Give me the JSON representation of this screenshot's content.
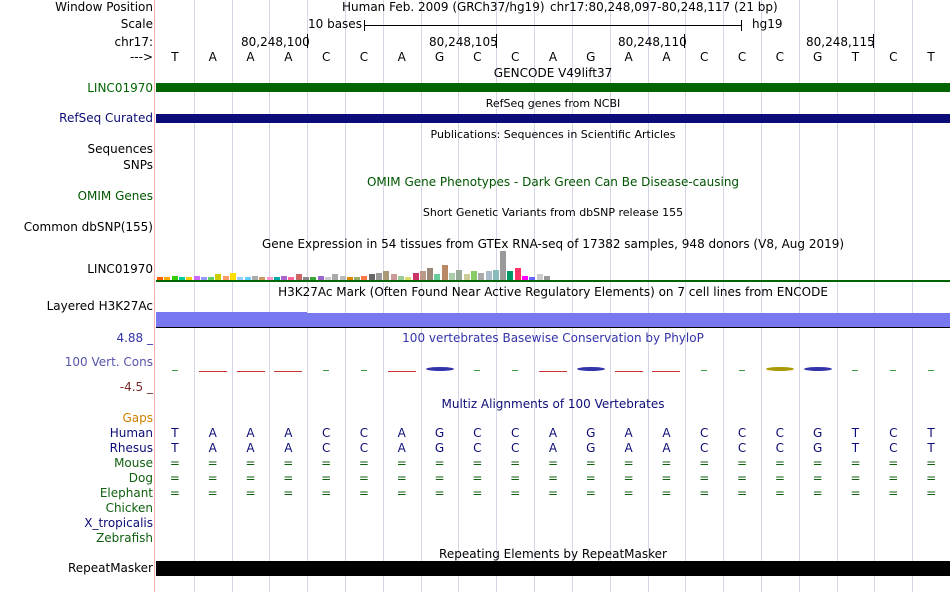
{
  "colors": {
    "gencode": "#006400",
    "refseq": "#0c0c78",
    "omim": "#005500",
    "h3k27ac": "#7878f0",
    "phylop": "#3333aa",
    "phylop_label": "#5555aa",
    "repeat": "#000000",
    "gaps": "#d08000",
    "mammal": "#0c0c78",
    "vertebrate": "#106010"
  },
  "header": {
    "window_position_label": "Window Position",
    "scale_label": "Scale",
    "chrom_label": "chr17:",
    "strand_label": "--->",
    "assembly_text": "Human Feb. 2009 (GRCh37/hg19)",
    "position_text": "chr17:80,248,097-80,248,117 (21 bp)",
    "scale_text": "10 bases",
    "scale_db": "hg19",
    "coordinates": [
      "80,248,100",
      "80,248,105",
      "80,248,110",
      "80,248,115"
    ]
  },
  "sequence": [
    "T",
    "A",
    "A",
    "A",
    "C",
    "C",
    "A",
    "G",
    "C",
    "C",
    "A",
    "G",
    "A",
    "A",
    "C",
    "C",
    "C",
    "G",
    "T",
    "C",
    "T"
  ],
  "tracks": {
    "gencode": {
      "title": "GENCODE V49lift37",
      "label": "LINC01970"
    },
    "refseq": {
      "title": "RefSeq genes from NCBI",
      "label": "RefSeq Curated"
    },
    "publications": {
      "title": "Publications: Sequences in Scientific Articles",
      "label": "Sequences"
    },
    "snps_label": "SNPs",
    "omim": {
      "title": "OMIM Gene Phenotypes - Dark Green Can Be Disease-causing",
      "label": "OMIM Genes"
    },
    "dbsnp": {
      "title": "Short Genetic Variants from dbSNP release 155",
      "label": "Common dbSNP(155)"
    },
    "gtex": {
      "title": "Gene Expression in 54 tissues from GTEx RNA-seq of 17382 samples, 948 donors (V8, Aug 2019)",
      "label": "LINC01970"
    },
    "h3k27ac": {
      "title": "H3K27Ac Mark (Often Found Near Active Regulatory Elements) on 7 cell lines from ENCODE",
      "label": "Layered H3K27Ac"
    },
    "phylop": {
      "title": "100 vertebrates Basewise Conservation by PhyloP",
      "label": "100 Vert. Cons",
      "max_label": "4.88 _",
      "min_label": "-4.5 _"
    },
    "multiz": {
      "title": "Multiz Alignments of 100 Vertebrates",
      "gaps_label": "Gaps"
    },
    "repeatmasker": {
      "title": "Repeating Elements by RepeatMasker",
      "label": "RepeatMasker"
    }
  },
  "species": [
    {
      "name": "Human",
      "color": "#0c0c78",
      "row": [
        "T",
        "A",
        "A",
        "A",
        "C",
        "C",
        "A",
        "G",
        "C",
        "C",
        "A",
        "G",
        "A",
        "A",
        "C",
        "C",
        "C",
        "G",
        "T",
        "C",
        "T"
      ]
    },
    {
      "name": "Rhesus",
      "color": "#0c0c78",
      "row": [
        "T",
        "A",
        "A",
        "A",
        "C",
        "C",
        "A",
        "G",
        "C",
        "C",
        "A",
        "G",
        "A",
        "A",
        "C",
        "C",
        "C",
        "G",
        "T",
        "C",
        "T"
      ]
    },
    {
      "name": "Mouse",
      "color": "#106010",
      "row": [
        "=",
        "=",
        "=",
        "=",
        "=",
        "=",
        "=",
        "=",
        "=",
        "=",
        "=",
        "=",
        "=",
        "=",
        "=",
        "=",
        "=",
        "=",
        "=",
        "=",
        "="
      ]
    },
    {
      "name": "Dog",
      "color": "#106010",
      "row": [
        "=",
        "=",
        "=",
        "=",
        "=",
        "=",
        "=",
        "=",
        "=",
        "=",
        "=",
        "=",
        "=",
        "=",
        "=",
        "=",
        "=",
        "=",
        "=",
        "=",
        "="
      ]
    },
    {
      "name": "Elephant",
      "color": "#106010",
      "row": [
        "=",
        "=",
        "=",
        "=",
        "=",
        "=",
        "=",
        "=",
        "=",
        "=",
        "=",
        "=",
        "=",
        "=",
        "=",
        "=",
        "=",
        "=",
        "=",
        "=",
        "="
      ]
    },
    {
      "name": "Chicken",
      "color": "#106010",
      "row": []
    },
    {
      "name": "X_tropicalis",
      "color": "#0c0c78",
      "row": []
    },
    {
      "name": "Zebrafish",
      "color": "#106010",
      "row": []
    }
  ],
  "gtex_values": [
    0.1,
    0.1,
    0.15,
    0.1,
    0.1,
    0.15,
    0.12,
    0.1,
    0.2,
    0.15,
    0.25,
    0.12,
    0.1,
    0.15,
    0.1,
    0.12,
    0.1,
    0.15,
    0.1,
    0.2,
    0.12,
    0.1,
    0.15,
    0.1,
    0.2,
    0.15,
    0.1,
    0.12,
    0.15,
    0.2,
    0.25,
    0.3,
    0.2,
    0.15,
    0.1,
    0.25,
    0.3,
    0.4,
    0.2,
    0.5,
    0.25,
    0.35,
    0.2,
    0.3,
    0.25,
    0.3,
    0.35,
    1.0,
    0.3,
    0.4,
    0.15,
    0.1,
    0.2,
    0.15
  ],
  "gtex_colors": [
    "#ff6600",
    "#ffaa00",
    "#33cc00",
    "#00cc99",
    "#ffcc00",
    "#cc66ff",
    "#9999ff",
    "#66cc66",
    "#cccc00",
    "#ff9966",
    "#ffdd00",
    "#99ccff",
    "#66ccff",
    "#aaaaaa",
    "#cc9966",
    "#ff99cc",
    "#00aaaa",
    "#aa66cc",
    "#ff6699",
    "#cc6666",
    "#888888",
    "#33aa33",
    "#9966cc",
    "#cccccc",
    "#aaaaaa",
    "#bbbbbb",
    "#dd8800",
    "#99aa66",
    "#ff7744",
    "#666666",
    "#999999",
    "#aa9977",
    "#cc9999",
    "#99cc99",
    "#dddd66",
    "#cc3366",
    "#bb9988",
    "#998877",
    "#66cc99",
    "#bb8866",
    "#aaccaa",
    "#99aa99",
    "#cccc99",
    "#88cc66",
    "#aaaaaa",
    "#aabbcc",
    "#88bbbb",
    "#999999",
    "#009966",
    "#ff3366",
    "#ff00ff",
    "#6666ff",
    "#cccccc",
    "#999999"
  ],
  "phylop_bases": [
    {
      "v": 0.1,
      "c": "#3a9a3a"
    },
    {
      "v": -0.4,
      "c": "#cc3333"
    },
    {
      "v": -0.4,
      "c": "#cc3333"
    },
    {
      "v": -0.4,
      "c": "#cc3333"
    },
    {
      "v": 0.1,
      "c": "#3a9a3a"
    },
    {
      "v": 0.1,
      "c": "#3a9a3a"
    },
    {
      "v": -0.3,
      "c": "#cc3333"
    },
    {
      "v": 0.5,
      "c": "#3333aa"
    },
    {
      "v": 0.1,
      "c": "#3a9a3a"
    },
    {
      "v": 0.1,
      "c": "#3a9a3a"
    },
    {
      "v": -0.3,
      "c": "#cc3333"
    },
    {
      "v": 0.5,
      "c": "#3333aa"
    },
    {
      "v": -0.3,
      "c": "#cc3333"
    },
    {
      "v": -0.3,
      "c": "#cc3333"
    },
    {
      "v": 0.1,
      "c": "#3a9a3a"
    },
    {
      "v": 0.1,
      "c": "#3a9a3a"
    },
    {
      "v": 0.5,
      "c": "#aa9900"
    },
    {
      "v": 0.5,
      "c": "#3333aa"
    },
    {
      "v": 0.1,
      "c": "#3a9a3a"
    },
    {
      "v": 0.1,
      "c": "#3a9a3a"
    },
    {
      "v": 0.1,
      "c": "#3a9a3a"
    }
  ]
}
